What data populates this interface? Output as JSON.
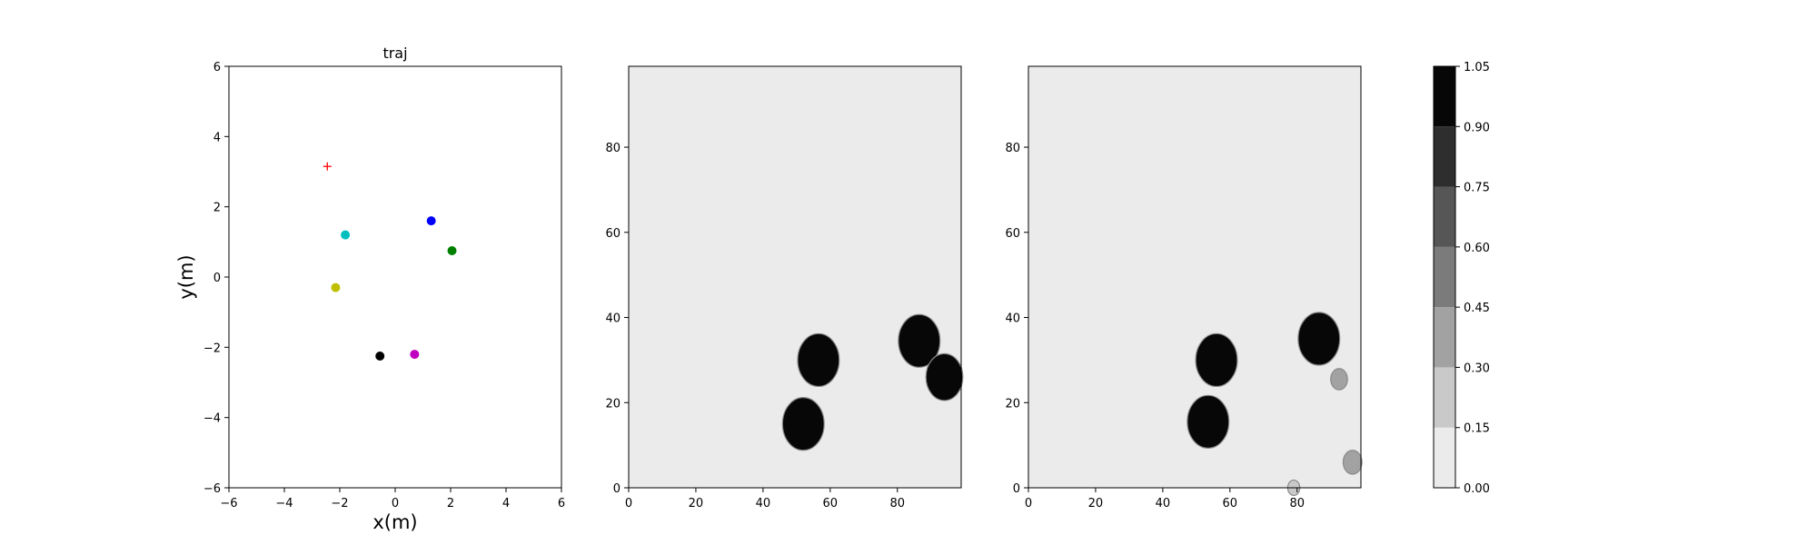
{
  "chart_data": [
    {
      "type": "scatter",
      "title": "traj",
      "xlabel": "x(m)",
      "ylabel": "y(m)",
      "xlim": [
        -6,
        6
      ],
      "ylim": [
        -6,
        6
      ],
      "xticks": [
        -6,
        -4,
        -2,
        0,
        2,
        4,
        6
      ],
      "yticks": [
        -6,
        -4,
        -2,
        0,
        2,
        4,
        6
      ],
      "grid": false,
      "points": [
        {
          "x": -2.45,
          "y": 3.15,
          "marker": "plus",
          "color": "#ff0000"
        },
        {
          "x": -1.8,
          "y": 1.2,
          "marker": "circle",
          "color": "#00bfbf"
        },
        {
          "x": 1.3,
          "y": 1.6,
          "marker": "circle",
          "color": "#0000ff"
        },
        {
          "x": 2.05,
          "y": 0.75,
          "marker": "circle",
          "color": "#008000"
        },
        {
          "x": -2.15,
          "y": -0.3,
          "marker": "circle",
          "color": "#bfbf00"
        },
        {
          "x": -0.55,
          "y": -2.25,
          "marker": "circle",
          "color": "#000000"
        },
        {
          "x": 0.7,
          "y": -2.2,
          "marker": "circle",
          "color": "#bf00bf"
        }
      ]
    },
    {
      "type": "heatmap",
      "title": "",
      "xlim": [
        0,
        99
      ],
      "ylim": [
        0,
        99
      ],
      "xticks": [
        0,
        20,
        40,
        60,
        80
      ],
      "yticks": [
        0,
        20,
        40,
        60,
        80
      ],
      "background_level": 0.0,
      "blobs": [
        {
          "cx": 56.5,
          "cy": 30,
          "r": 6.2,
          "level": 1.0
        },
        {
          "cx": 52,
          "cy": 15,
          "r": 6.2,
          "level": 1.0
        },
        {
          "cx": 86.5,
          "cy": 34.5,
          "r": 6.2,
          "level": 1.0
        },
        {
          "cx": 94,
          "cy": 26,
          "r": 5.5,
          "level": 1.0
        }
      ]
    },
    {
      "type": "heatmap",
      "title": "",
      "xlim": [
        0,
        99
      ],
      "ylim": [
        0,
        99
      ],
      "xticks": [
        0,
        20,
        40,
        60,
        80
      ],
      "yticks": [
        0,
        20,
        40,
        60,
        80
      ],
      "background_level": 0.0,
      "blobs": [
        {
          "cx": 56,
          "cy": 30,
          "r": 6.2,
          "level": 1.0
        },
        {
          "cx": 53.5,
          "cy": 15.5,
          "r": 6.2,
          "level": 1.0
        },
        {
          "cx": 86.5,
          "cy": 35,
          "r": 6.2,
          "level": 1.0
        },
        {
          "cx": 92.5,
          "cy": 25.5,
          "r": 2.5,
          "level": 0.3
        },
        {
          "cx": 96.5,
          "cy": 6,
          "r": 2.8,
          "level": 0.3
        },
        {
          "cx": 79,
          "cy": 0,
          "r": 1.8,
          "level": 0.15
        }
      ]
    }
  ],
  "colorbar": {
    "levels": [
      0.0,
      0.15,
      0.3,
      0.45,
      0.6,
      0.75,
      0.9,
      1.05
    ],
    "tick_labels": [
      "0.00",
      "0.15",
      "0.30",
      "0.45",
      "0.60",
      "0.75",
      "0.90",
      "1.05"
    ],
    "colors": [
      "#ebebeb",
      "#c9c9c9",
      "#a2a2a2",
      "#7b7b7b",
      "#565656",
      "#2e2e2e",
      "#070707"
    ]
  },
  "plot_style": {
    "frame_color": "#000000",
    "heatmap_level_colors": {
      "0.15": "#c9c9c9",
      "0.3": "#a2a2a2",
      "1.0": "#070707"
    }
  }
}
